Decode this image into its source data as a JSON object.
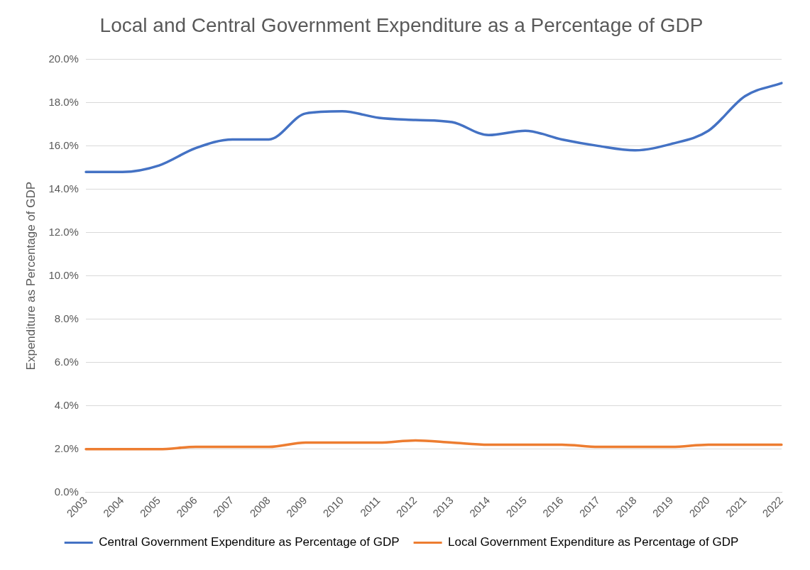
{
  "chart_data": {
    "type": "line",
    "title": "Local and Central Government Expenditure as a Percentage of GDP",
    "ylabel": "Expenditure as Percentage of GDP",
    "categories": [
      "2003",
      "2004",
      "2005",
      "2006",
      "2007",
      "2008",
      "2009",
      "2010",
      "2011",
      "2012",
      "2013",
      "2014",
      "2015",
      "2016",
      "2017",
      "2018",
      "2019",
      "2020",
      "2021",
      "2022"
    ],
    "series": [
      {
        "name": "Central Government Expenditure as Percentage of GDP",
        "color": "#4472c4",
        "values": [
          14.8,
          14.8,
          15.1,
          15.9,
          16.3,
          16.3,
          17.5,
          17.6,
          17.3,
          17.2,
          17.1,
          16.5,
          16.7,
          16.3,
          16.0,
          15.8,
          16.1,
          16.7,
          18.3,
          18.9
        ]
      },
      {
        "name": "Local Government Expenditure as Percentage of GDP",
        "color": "#ed7d31",
        "values": [
          2.0,
          2.0,
          2.0,
          2.1,
          2.1,
          2.1,
          2.3,
          2.3,
          2.3,
          2.4,
          2.3,
          2.2,
          2.2,
          2.2,
          2.1,
          2.1,
          2.1,
          2.2,
          2.2,
          2.2
        ]
      }
    ],
    "ylim": [
      0,
      20
    ],
    "yticks": [
      {
        "value": 0,
        "label": "0.0%"
      },
      {
        "value": 2,
        "label": "2.0%"
      },
      {
        "value": 4,
        "label": "4.0%"
      },
      {
        "value": 6,
        "label": "6.0%"
      },
      {
        "value": 8,
        "label": "8.0%"
      },
      {
        "value": 10,
        "label": "10.0%"
      },
      {
        "value": 12,
        "label": "12.0%"
      },
      {
        "value": 14,
        "label": "14.0%"
      },
      {
        "value": 16,
        "label": "16.0%"
      },
      {
        "value": 18,
        "label": "18.0%"
      },
      {
        "value": 20,
        "label": "20.0%"
      }
    ],
    "grid": "y",
    "legend": "bottom",
    "marker": "none",
    "line_style": "solid"
  }
}
